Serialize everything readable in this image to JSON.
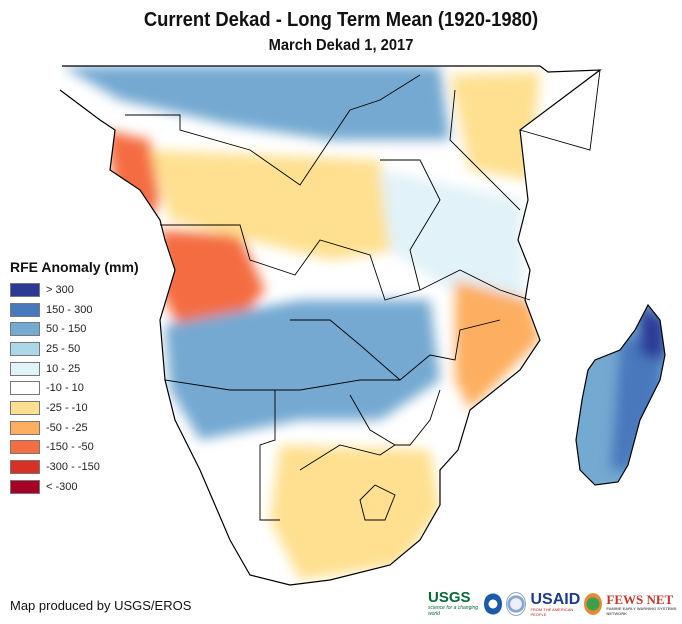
{
  "title": "Current Dekad - Long Term Mean (1920-1980)",
  "subtitle": "March Dekad 1, 2017",
  "legend": {
    "title": "RFE Anomaly (mm)",
    "items": [
      {
        "label": "> 300",
        "color": "#2c3a96"
      },
      {
        "label": "150 - 300",
        "color": "#4a78bd"
      },
      {
        "label": "50 - 150",
        "color": "#74a9d1"
      },
      {
        "label": "25 - 50",
        "color": "#acd7e8"
      },
      {
        "label": "10 - 25",
        "color": "#e1f2f8"
      },
      {
        "label": "-10 - 10",
        "color": "#ffffff"
      },
      {
        "label": "-25 - -10",
        "color": "#fee090"
      },
      {
        "label": "-50 - -25",
        "color": "#fdae61"
      },
      {
        "label": "-150 - -50",
        "color": "#f46d43"
      },
      {
        "label": "-300 - -150",
        "color": "#d73027"
      },
      {
        "label": "< -300",
        "color": "#a50026"
      }
    ]
  },
  "credit": "Map produced by USGS/EROS",
  "logos": {
    "usgs": "USGS",
    "usgs_tagline": "science for a changing world",
    "usaid": "USAID",
    "usaid_tagline": "FROM THE AMERICAN PEOPLE",
    "fews": "FEWS NET",
    "fews_tagline": "FAMINE EARLY WARNING SYSTEMS NETWORK"
  },
  "map": {
    "region": "Southern and Eastern Africa",
    "regions": [
      {
        "name": "west-central-coast",
        "category": "-150 - -50"
      },
      {
        "name": "angola-west",
        "category": "-150 - -50"
      },
      {
        "name": "congo-basin",
        "category": "-25 - -10"
      },
      {
        "name": "central-africa-north",
        "category": "50 - 150"
      },
      {
        "name": "east-africa-tanzania",
        "category": "10 - 25"
      },
      {
        "name": "kenya-somalia",
        "category": "-25 - -10"
      },
      {
        "name": "zambia-namibia-belt",
        "category": "50 - 150"
      },
      {
        "name": "mozambique",
        "category": "-50 - -25"
      },
      {
        "name": "south-africa",
        "category": "-25 - -10"
      },
      {
        "name": "madagascar-west",
        "category": "50 - 150"
      },
      {
        "name": "madagascar-east",
        "category": "150 - 300"
      },
      {
        "name": "madagascar-northeast",
        "category": "> 300"
      }
    ]
  }
}
